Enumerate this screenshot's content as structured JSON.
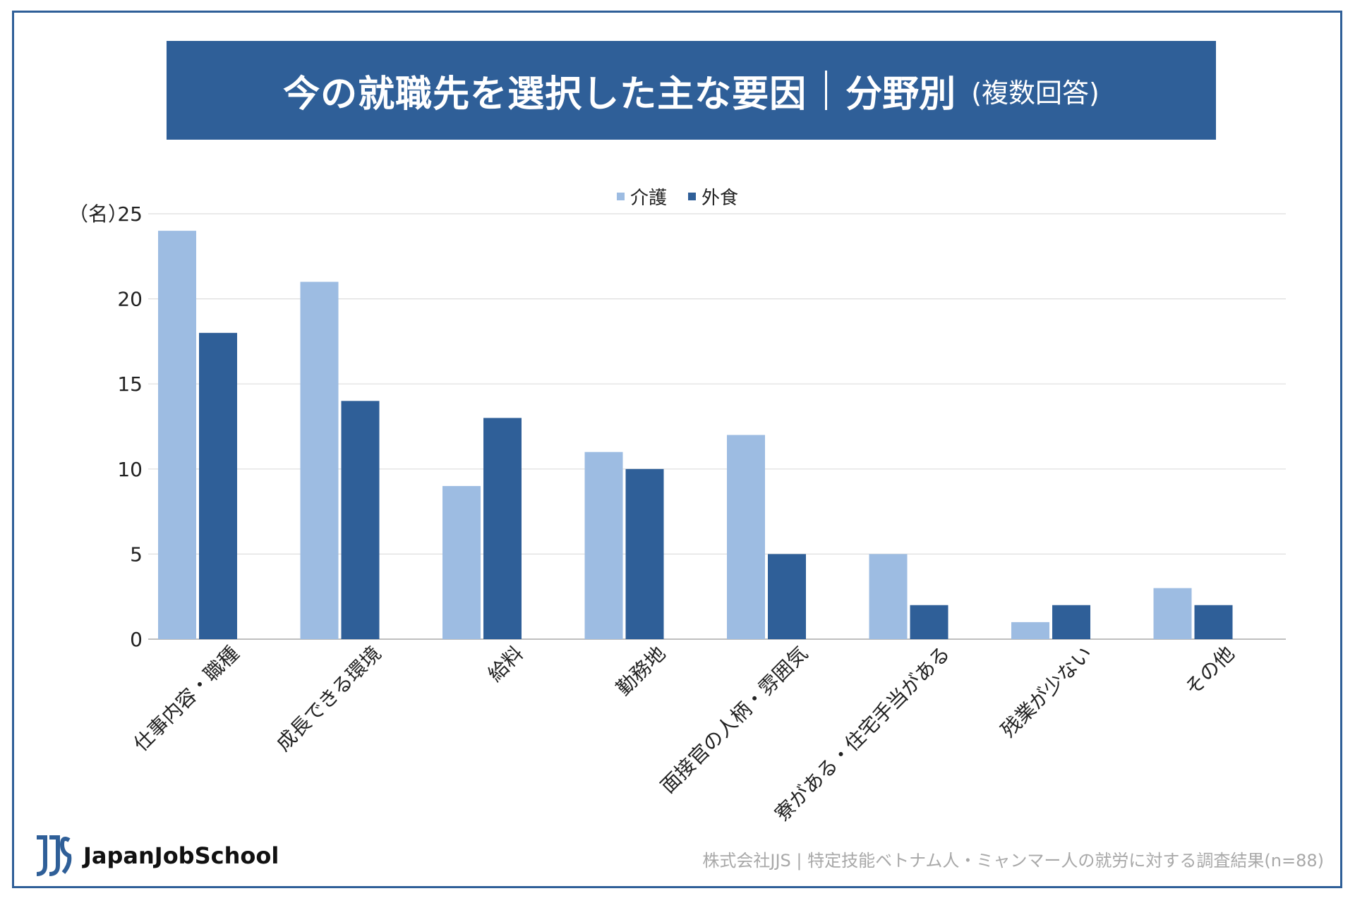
{
  "banner": {
    "title": "今の就職先を選択した主な要因",
    "field": "分野別",
    "note": "(複数回答)",
    "bg_color": "#2f5f98"
  },
  "chart_data": {
    "type": "bar",
    "ylabel": "（名）",
    "ylim": [
      0,
      25
    ],
    "yticks": [
      0,
      5,
      10,
      15,
      20,
      25
    ],
    "grid": true,
    "legend_position": "top-center",
    "categories": [
      "仕事内容・職種",
      "成長できる環境",
      "給料",
      "勤務地",
      "面接官の人柄・雰囲気",
      "寮がある・住宅手当がある",
      "残業が少ない",
      "その他"
    ],
    "series": [
      {
        "name": "介護",
        "color": "#9dbce2",
        "values": [
          24,
          21,
          9,
          11,
          12,
          5,
          1,
          3
        ]
      },
      {
        "name": "外食",
        "color": "#2f5f98",
        "values": [
          18,
          14,
          13,
          10,
          5,
          2,
          2,
          2
        ]
      }
    ]
  },
  "footer": {
    "logo_text": "JapanJobSchool",
    "source": "株式会社JJS | 特定技能ベトナム人・ミャンマー人の就労に対する調査結果(n=88)"
  }
}
